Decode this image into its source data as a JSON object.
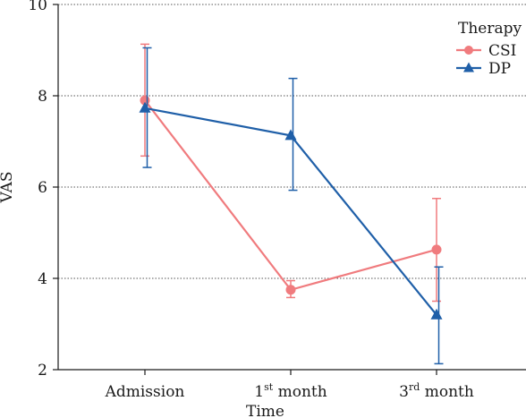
{
  "chart_data": {
    "type": "line",
    "xlabel": "Time",
    "ylabel": "VAS",
    "categories": [
      {
        "base": "Admission",
        "sup": "",
        "rest": ""
      },
      {
        "base": "1",
        "sup": "st",
        "rest": " month"
      },
      {
        "base": "3",
        "sup": "rd",
        "rest": " month"
      }
    ],
    "ylim": [
      2,
      10
    ],
    "yticks": [
      2,
      4,
      6,
      8,
      10
    ],
    "grid": "horizontal dotted",
    "legend": {
      "title": "Therapy",
      "placement": "top-right"
    },
    "series": [
      {
        "name": "CSI",
        "color": "#f07b7e",
        "marker": "circle",
        "values": [
          7.9,
          3.75,
          4.63
        ],
        "error_low": [
          6.68,
          3.58,
          3.5
        ],
        "error_high": [
          9.13,
          3.95,
          5.75
        ]
      },
      {
        "name": "DP",
        "color": "#1f5fa8",
        "marker": "triangle",
        "values": [
          7.73,
          7.13,
          3.2
        ],
        "error_low": [
          6.43,
          5.93,
          2.13
        ],
        "error_high": [
          9.05,
          8.38,
          4.25
        ]
      }
    ]
  }
}
